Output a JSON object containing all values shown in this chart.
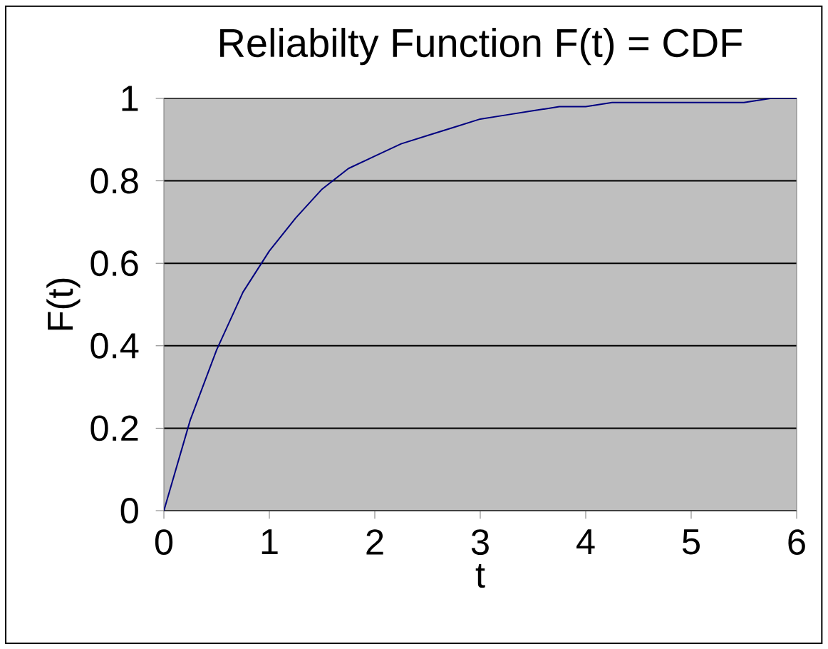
{
  "chart_data": {
    "type": "line",
    "title": "Reliabilty Function F(t) = CDF",
    "xlabel": "t",
    "ylabel": "F(t)",
    "x": [
      0,
      0.25,
      0.5,
      0.75,
      1,
      1.25,
      1.5,
      1.75,
      2,
      2.25,
      2.5,
      2.75,
      3,
      3.25,
      3.5,
      3.75,
      4,
      4.25,
      4.5,
      4.75,
      5,
      5.25,
      5.5,
      5.75,
      6
    ],
    "values": [
      0,
      0.22,
      0.39,
      0.53,
      0.63,
      0.71,
      0.78,
      0.83,
      0.86,
      0.89,
      0.91,
      0.93,
      0.95,
      0.96,
      0.97,
      0.98,
      0.98,
      0.99,
      0.99,
      0.99,
      0.99,
      0.99,
      0.99,
      1.0,
      1.0
    ],
    "color": "#000080",
    "xlim": [
      0,
      6
    ],
    "ylim": [
      0,
      1
    ],
    "xticks": [
      0,
      1,
      2,
      3,
      4,
      5,
      6
    ],
    "yticks": [
      0,
      0.2,
      0.4,
      0.6,
      0.8,
      1
    ],
    "grid": "y",
    "legend": false
  }
}
